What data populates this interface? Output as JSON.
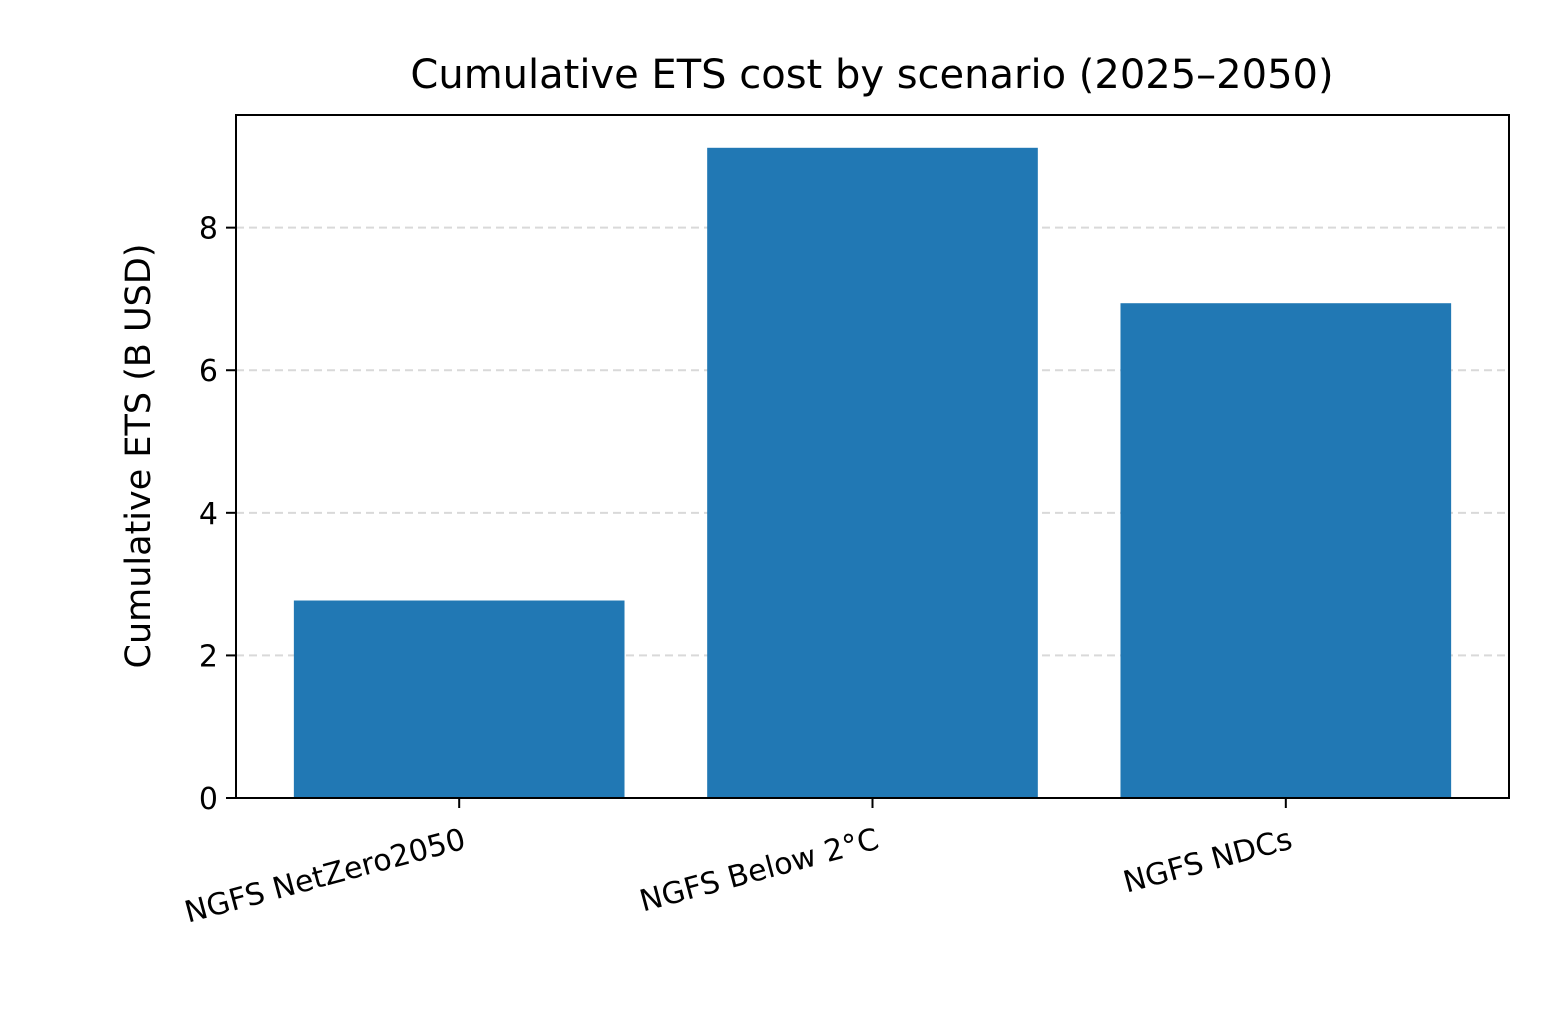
{
  "chart_data": {
    "type": "bar",
    "title": "Cumulative ETS cost by scenario (2025–2050)",
    "xlabel": "",
    "ylabel": "Cumulative ETS (B USD)",
    "categories": [
      "NGFS NetZero2050",
      "NGFS Below 2°C",
      "NGFS NDCs"
    ],
    "values": [
      2.77,
      9.12,
      6.94
    ],
    "ylim": [
      0,
      9.58
    ],
    "yticks": [
      0,
      2,
      4,
      6,
      8
    ],
    "grid": "y-dashed",
    "legend": "none",
    "colors": {
      "bar": "#2178b4",
      "grid": "#d9d9d9",
      "axis": "#000000"
    }
  }
}
